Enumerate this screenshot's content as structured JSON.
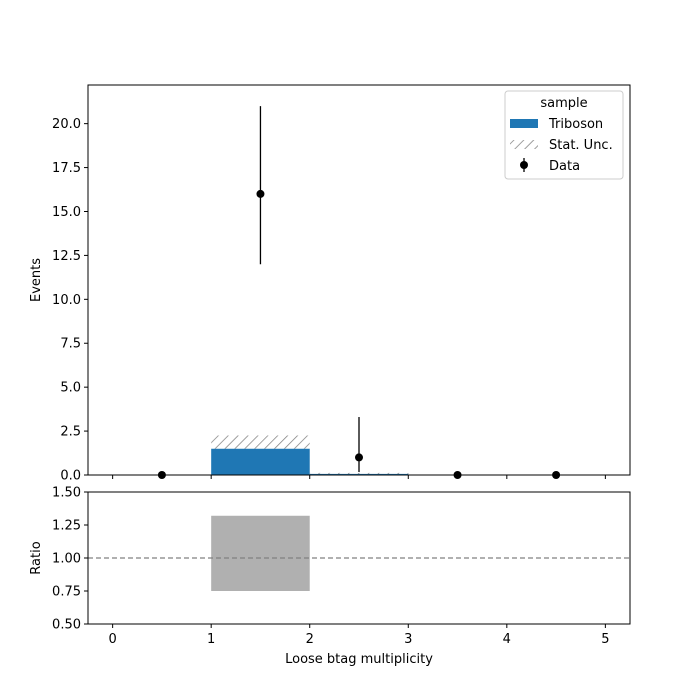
{
  "chart_data": [
    {
      "type": "bar",
      "panel": "main",
      "ylabel": "Events",
      "xlim": [
        -0.25,
        5.25
      ],
      "ylim": [
        0,
        22.2
      ],
      "yticks": [
        "0.0",
        "2.5",
        "5.0",
        "7.5",
        "10.0",
        "12.5",
        "15.0",
        "17.5",
        "20.0"
      ],
      "grid": false,
      "legend": {
        "title": "sample",
        "placement": "top-right",
        "entries": [
          "Triboson",
          "Stat. Unc.",
          "Data"
        ]
      },
      "series": [
        {
          "name": "Triboson",
          "kind": "stacked-histogram",
          "color": "#1f77b4",
          "bins": [
            [
              0,
              1
            ],
            [
              1,
              2
            ],
            [
              2,
              3
            ],
            [
              3,
              4
            ],
            [
              4,
              5
            ]
          ],
          "values": [
            0,
            1.5,
            0.1,
            0,
            0
          ]
        },
        {
          "name": "Stat. Unc.",
          "kind": "hatched-band",
          "color": "#808080",
          "bins": [
            [
              1,
              2
            ],
            [
              2,
              3
            ]
          ],
          "low": [
            1.5,
            0.08
          ],
          "high": [
            2.25,
            0.12
          ]
        },
        {
          "name": "Data",
          "kind": "errorbar",
          "color": "#000000",
          "x": [
            0.5,
            1.5,
            2.5,
            3.5,
            4.5
          ],
          "y": [
            0,
            16,
            1,
            0,
            0
          ],
          "yerr_low": [
            0,
            4,
            0.83,
            0,
            0
          ],
          "yerr_high": [
            0,
            5,
            2.3,
            0,
            0
          ]
        }
      ]
    },
    {
      "type": "bar",
      "panel": "ratio",
      "xlabel": "Loose btag multiplicity",
      "ylabel": "Ratio",
      "xlim": [
        -0.25,
        5.25
      ],
      "ylim": [
        0.5,
        1.5
      ],
      "xticks": [
        "0",
        "1",
        "2",
        "3",
        "4",
        "5"
      ],
      "yticks": [
        "0.50",
        "0.75",
        "1.00",
        "1.25",
        "1.50"
      ],
      "reference_line": 1.0,
      "band": {
        "color": "#b0b0b0",
        "bins": [
          [
            1,
            2
          ]
        ],
        "low": [
          0.75
        ],
        "high": [
          1.32
        ]
      }
    }
  ]
}
